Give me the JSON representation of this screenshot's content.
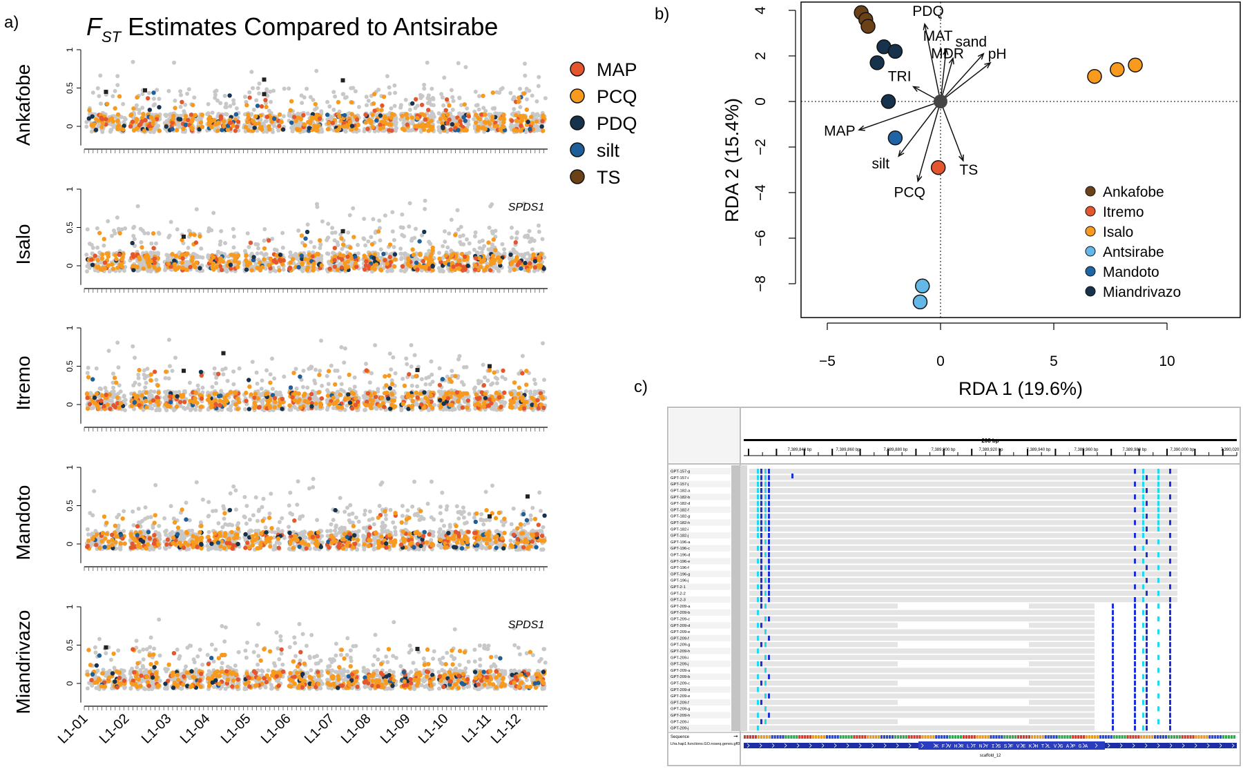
{
  "panel_labels": {
    "a": "a)",
    "b": "b)",
    "c": "c)"
  },
  "colors": {
    "MAP": "#E4572E",
    "PCQ": "#F79A1E",
    "PDQ": "#17324D",
    "silt": "#1F5F99",
    "TS": "#6B4218",
    "background_snp": "#c8c8c8",
    "Ankafobe": "#6B4218",
    "Itremo": "#E4572E",
    "Isalo": "#F79A1E",
    "Antsirabe": "#63B8E8",
    "Mandoto": "#1F64A4",
    "Miandrivazo": "#17324D",
    "igv_dark": "#1a2fd6",
    "igv_light": "#22d8ee",
    "igv_track": "#e4e4e4"
  },
  "chart_data": [
    {
      "type": "scatter",
      "panel": "a",
      "title_main": "F",
      "title_sub": "ST",
      "title_rest": " Estimates Compared to Antsirabe",
      "ylim": [
        0,
        1
      ],
      "yticks": [
        "0",
        "0.5",
        "1"
      ],
      "xtick_labels": [
        "L1-01",
        "L1-02",
        "L1-03",
        "L1-04",
        "L1-05",
        "L1-06",
        "L1-07",
        "L1-08",
        "L1-09",
        "L1-10",
        "L1-11",
        "L1-12"
      ],
      "legend": {
        "position": "top-right",
        "entries": [
          "MAP",
          "PCQ",
          "PDQ",
          "silt",
          "TS"
        ]
      },
      "series": [
        {
          "name": "Ankafobe",
          "annotation": "",
          "outliers": [
            {
              "chr": 1,
              "fst": 0.45
            },
            {
              "chr": 2,
              "fst": 0.47
            },
            {
              "chr": 5,
              "fst": 0.61
            },
            {
              "chr": 5,
              "fst": 0.42
            },
            {
              "chr": 7,
              "fst": 0.6
            }
          ]
        },
        {
          "name": "Isalo",
          "annotation": "SPDS1",
          "outliers": [
            {
              "chr": 3,
              "fst": 0.38
            },
            {
              "chr": 7,
              "fst": 0.45
            }
          ]
        },
        {
          "name": "Itremo",
          "annotation": "",
          "outliers": [
            {
              "chr": 3,
              "fst": 0.44
            },
            {
              "chr": 4,
              "fst": 0.67
            },
            {
              "chr": 9,
              "fst": 0.45
            },
            {
              "chr": 11,
              "fst": 0.5
            }
          ]
        },
        {
          "name": "Mandoto",
          "annotation": "",
          "outliers": [
            {
              "chr": 11,
              "fst": 0.36
            },
            {
              "chr": 12,
              "fst": 0.62
            }
          ]
        },
        {
          "name": "Miandrivazo",
          "annotation": "SPDS1",
          "outliers": [
            {
              "chr": 1,
              "fst": 0.47
            },
            {
              "chr": 9,
              "fst": 0.45
            }
          ]
        }
      ]
    },
    {
      "type": "scatter",
      "panel": "b",
      "xlabel": "RDA 1 (19.6%)",
      "ylabel": "RDA 2 (15.4%)",
      "xlim": [
        -5,
        10
      ],
      "ylim": [
        -8,
        4
      ],
      "xticks": [
        "−5",
        "0",
        "5",
        "10"
      ],
      "yticks": [
        "−8",
        "−6",
        "−4",
        "−2",
        "0",
        "2",
        "4"
      ],
      "points": [
        {
          "site": "Ankafobe",
          "x": -3.5,
          "y": 3.9
        },
        {
          "site": "Ankafobe",
          "x": -3.3,
          "y": 3.6
        },
        {
          "site": "Ankafobe",
          "x": -3.2,
          "y": 3.3
        },
        {
          "site": "Miandrivazo",
          "x": -2.5,
          "y": 2.4
        },
        {
          "site": "Miandrivazo",
          "x": -2.0,
          "y": 2.2
        },
        {
          "site": "Miandrivazo",
          "x": -2.8,
          "y": 1.7
        },
        {
          "site": "Miandrivazo",
          "x": -2.3,
          "y": 0.0
        },
        {
          "site": "Mandoto",
          "x": -2.0,
          "y": -1.6
        },
        {
          "site": "Itremo",
          "x": -0.1,
          "y": -2.9
        },
        {
          "site": "Isalo",
          "x": 6.8,
          "y": 1.1
        },
        {
          "site": "Isalo",
          "x": 7.8,
          "y": 1.4
        },
        {
          "site": "Isalo",
          "x": 8.6,
          "y": 1.6
        },
        {
          "site": "Antsirabe",
          "x": -0.8,
          "y": -8.1
        },
        {
          "site": "Antsirabe",
          "x": -0.9,
          "y": -8.8
        }
      ],
      "arrows": [
        {
          "label": "PDQ",
          "x": -0.7,
          "y": 3.4
        },
        {
          "label": "MAT",
          "x": 0.25,
          "y": 2.3
        },
        {
          "label": "MDR",
          "x": 0.55,
          "y": 1.9
        },
        {
          "label": "sand",
          "x": 1.9,
          "y": 2.1
        },
        {
          "label": "pH",
          "x": 2.2,
          "y": 1.7
        },
        {
          "label": "TRI",
          "x": -1.2,
          "y": 0.65
        },
        {
          "label": "MAP",
          "x": -3.6,
          "y": -1.25
        },
        {
          "label": "silt",
          "x": -1.85,
          "y": -2.4
        },
        {
          "label": "PCQ",
          "x": -1.0,
          "y": -3.5
        },
        {
          "label": "TS",
          "x": 1.0,
          "y": -2.6
        }
      ],
      "legend": {
        "position": "bottom-right",
        "entries": [
          "Ankafobe",
          "Itremo",
          "Isalo",
          "Antsirabe",
          "Mandoto",
          "Miandrivazo"
        ]
      }
    }
  ],
  "igv": {
    "ruler_label": "208 bp",
    "positions": [
      "7,389,840 bp",
      "7,389,860 bp",
      "7,389,880 bp",
      "7,389,900 bp",
      "7,389,920 bp",
      "7,389,940 bp",
      "7,389,960 bp",
      "7,389,980 bp",
      "7,390,000 bp",
      "7,390,020"
    ],
    "samples": [
      "GPT-157-g",
      "GPT-157-i",
      "GPT-157-j",
      "GPT-182-a",
      "GPT-182-b",
      "GPT-182-d",
      "GPT-182-f",
      "GPT-182-g",
      "GPT-182-h",
      "GPT-182-i",
      "GPT-182-j",
      "GPT-196-a",
      "GPT-196-c",
      "GPT-196-d",
      "GPT-196-e",
      "GPT-196-f",
      "GPT-196-g",
      "GPT-196-j",
      "GPT-2-1",
      "GPT-2-2",
      "GPT-2-3",
      "GPT-209-a",
      "GPT-209-b",
      "GPT-209-c",
      "GPT-209-d",
      "GPT-209-e",
      "GPT-209-f",
      "GPT-209-g",
      "GPT-209-h",
      "GPT-209-i",
      "GPT-209-j",
      "GPT-209-a",
      "GPT-209-b",
      "GPT-209-c",
      "GPT-209-d",
      "GPT-209-e",
      "GPT-209-f",
      "GPT-209-g",
      "GPT-209-h",
      "GPT-209-i",
      "GPT-209-j"
    ],
    "sequence_label": "Sequence",
    "annotation_label": "Lfra.hap1.functions.GO.noseq.genes.gff3",
    "protein_sequence": "K F V H R L T N Y I S S F V E K H T L V G A P G A",
    "scaffold_label": "scaffold_12"
  }
}
